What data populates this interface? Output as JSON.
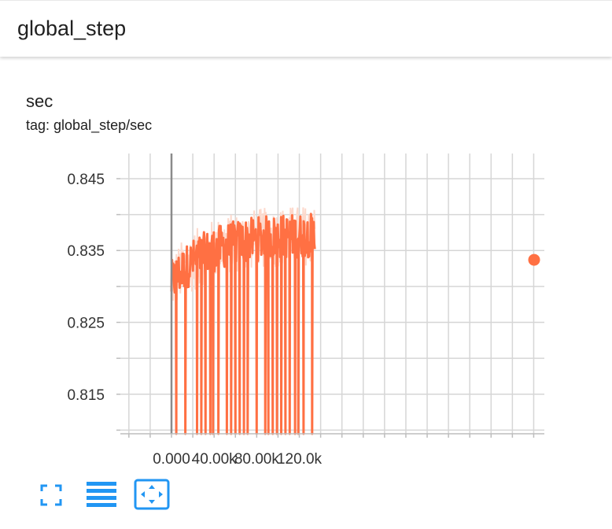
{
  "header": {
    "title": "global_step"
  },
  "card": {
    "title": "sec",
    "tag": "tag: global_step/sec"
  },
  "toolbar": {
    "fullscreen_icon": "fullscreen-icon",
    "data_table_icon": "list-icon",
    "fit_domain_icon": "fit-domain-icon",
    "accent_color": "#2196f3"
  },
  "chart_data": {
    "type": "line",
    "title": "",
    "xlabel": "",
    "ylabel": "",
    "xlim": [
      -48000,
      350000
    ],
    "ylim": [
      0.8095,
      0.8485
    ],
    "x_ticks": [
      0,
      40000,
      80000,
      120000
    ],
    "x_tick_labels": [
      "0.000",
      "40.00k",
      "80.00k",
      "120.0k"
    ],
    "y_ticks": [
      0.815,
      0.825,
      0.835,
      0.845
    ],
    "y_tick_labels": [
      "0.815",
      "0.825",
      "0.835",
      "0.845"
    ],
    "grid": true,
    "series": [
      {
        "color": "#ff7043",
        "raw_color": "#fdd9cc",
        "values": {
          "x_start": 0,
          "x_end": 134500,
          "end_point": [
            135500,
            0.8337
          ],
          "dip_x": [
            4500,
            13000,
            24000,
            28000,
            32000,
            36500,
            39000,
            44000,
            52000,
            56000,
            60000,
            64000,
            68000,
            71500,
            80000,
            88000,
            91000,
            95000,
            99000,
            103000,
            107000,
            111000,
            116000,
            119000,
            124000,
            132000
          ],
          "dip_min": 0.8095
        }
      }
    ]
  }
}
